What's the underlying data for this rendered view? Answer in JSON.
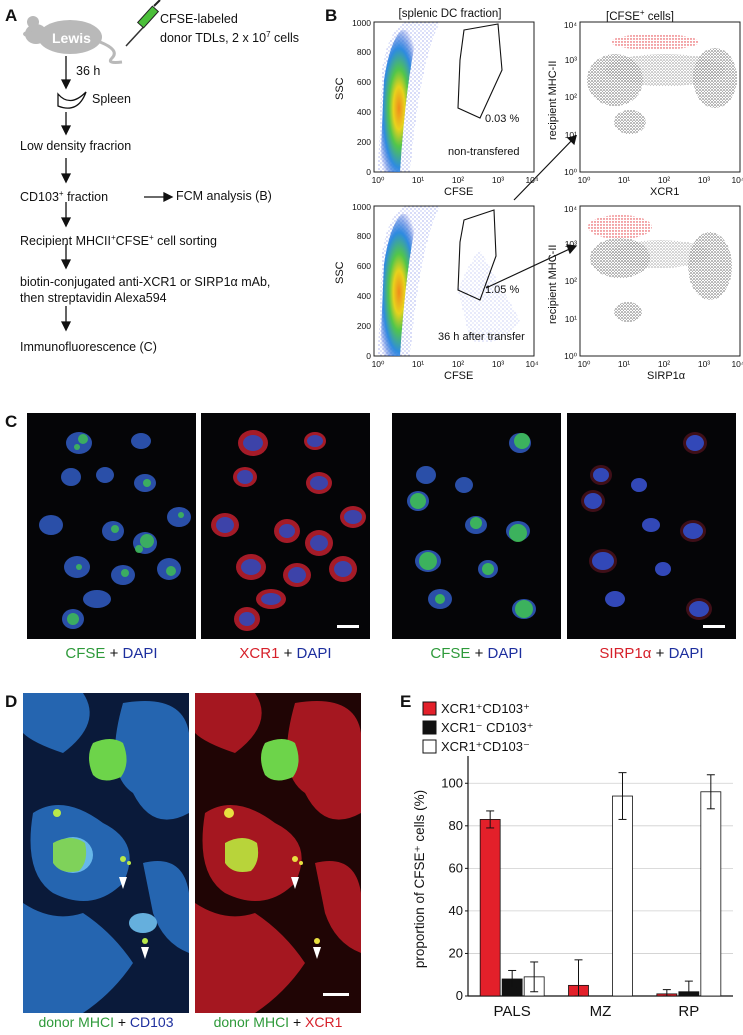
{
  "panels": {
    "A": "A",
    "B": "B",
    "C": "C",
    "D": "D",
    "E": "E"
  },
  "flowchart": {
    "mouse_label": "Lewis",
    "donor_line1": "CFSE-labeled",
    "donor_line2": "donor TDLs, 2 x 10",
    "donor_exp": "7",
    "donor_line2b": " cells",
    "time": "36 h",
    "spleen": "Spleen",
    "step1": "Low density fracrion",
    "step2_pre": "CD103",
    "step2_sup": "+",
    "step2_post": " fraction",
    "step2_target": "FCM analysis (B)",
    "step3_pre": "Recipient MHCII",
    "step3_sup1": "+",
    "step3_mid": "CFSE",
    "step3_sup2": "+",
    "step3_post": " cell sorting",
    "step4_line1": "biotin-conjugated anti-XCR1 or SIRP1α mAb,",
    "step4_line2": "then streptavidin Alexa594",
    "step5": "Immunofluorescence (C)"
  },
  "facs": {
    "left_title": "[splenic DC fraction]",
    "right_title_pre": "[CFSE",
    "right_title_sup": "+",
    "right_title_post": " cells]",
    "ssc": "SSC",
    "cfse": "CFSE",
    "mhc": "recipient MHC-II",
    "xcr1": "XCR1",
    "sirp": "SIRP1α",
    "top_pct": "0.03 %",
    "top_note": "non-transfered",
    "bottom_pct": "1.05 %",
    "bottom_note": "36 h after transfer",
    "lin_ticks": [
      "0",
      "200",
      "400",
      "600",
      "800",
      "1000"
    ],
    "log_ticks": [
      "10⁰",
      "10¹",
      "10²",
      "10³",
      "10⁴"
    ]
  },
  "panel_c": {
    "cap1_a": "CFSE",
    "cap1_plus": " + ",
    "cap1_b": "DAPI",
    "cap2_a": "XCR1",
    "cap2_plus": " + ",
    "cap2_b": "DAPI",
    "cap3_a": "CFSE",
    "cap3_plus": " + ",
    "cap3_b": "DAPI",
    "cap4_a": "SIRP1α",
    "cap4_plus": " + ",
    "cap4_b": "DAPI"
  },
  "panel_d": {
    "cap1_a": "donor MHCI",
    "cap1_plus": " + ",
    "cap1_b": "CD103",
    "cap2_a": "donor MHCI",
    "cap2_plus": " + ",
    "cap2_b": "XCR1"
  },
  "chart_data": {
    "type": "bar",
    "categories": [
      "PALS",
      "MZ",
      "RP"
    ],
    "ylabel": "proportion of CFSE⁺ cells (%)",
    "ylim": [
      0,
      110
    ],
    "yticks": [
      0,
      20,
      40,
      60,
      80,
      100
    ],
    "series": [
      {
        "name": "XCR1⁺CD103⁺",
        "color": "#e3202a",
        "values": [
          83,
          5,
          1
        ],
        "errors": [
          4,
          12,
          2
        ]
      },
      {
        "name": "XCR1⁻ CD103⁺",
        "color": "#111111",
        "values": [
          8,
          0,
          2
        ],
        "errors": [
          4,
          0,
          5
        ]
      },
      {
        "name": "XCR1⁺CD103⁻",
        "color": "#ffffff",
        "values": [
          9,
          94,
          96
        ],
        "errors": [
          7,
          11,
          8
        ]
      }
    ]
  }
}
